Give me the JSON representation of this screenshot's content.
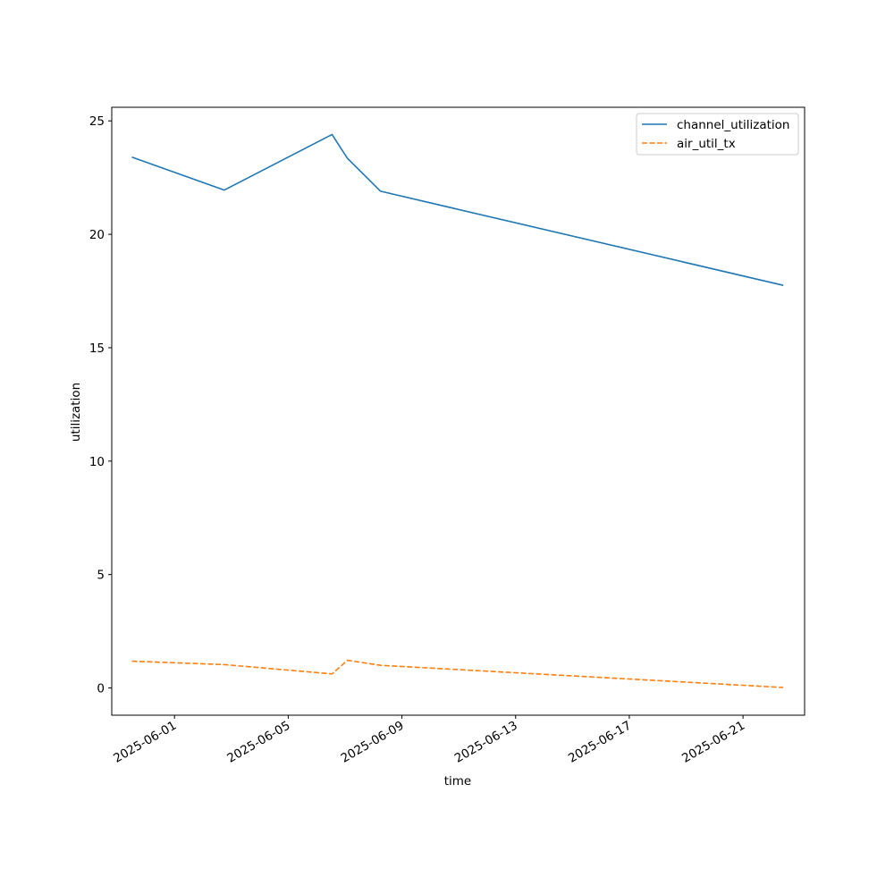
{
  "chart_data": {
    "type": "line",
    "xlabel": "time",
    "ylabel": "utilization",
    "xlim": [
      "2025-05-29T19:00",
      "2025-06-23T04:00"
    ],
    "ylim": [
      -1.2,
      25.6
    ],
    "xticks": [
      "2025-06-01",
      "2025-06-05",
      "2025-06-09",
      "2025-06-13",
      "2025-06-17",
      "2025-06-21"
    ],
    "yticks": [
      0,
      5,
      10,
      15,
      20,
      25
    ],
    "grid": false,
    "legend": "top-right",
    "series": [
      {
        "name": "channel_utilization",
        "color": "#1f77b4",
        "style": "solid",
        "points": [
          {
            "x": "2025-05-30T12:00",
            "y": 23.4
          },
          {
            "x": "2025-06-02T18:00",
            "y": 21.95
          },
          {
            "x": "2025-06-06T13:00",
            "y": 24.4
          },
          {
            "x": "2025-06-07T02:00",
            "y": 23.35
          },
          {
            "x": "2025-06-08T06:00",
            "y": 21.9
          },
          {
            "x": "2025-06-22T10:00",
            "y": 17.75
          }
        ]
      },
      {
        "name": "air_util_tx",
        "color": "#ff7f0e",
        "style": "dashed",
        "points": [
          {
            "x": "2025-05-30T12:00",
            "y": 1.18
          },
          {
            "x": "2025-06-02T18:00",
            "y": 1.03
          },
          {
            "x": "2025-06-06T13:00",
            "y": 0.62
          },
          {
            "x": "2025-06-07T02:00",
            "y": 1.22
          },
          {
            "x": "2025-06-08T06:00",
            "y": 1.0
          },
          {
            "x": "2025-06-22T10:00",
            "y": 0.02
          }
        ]
      }
    ]
  }
}
